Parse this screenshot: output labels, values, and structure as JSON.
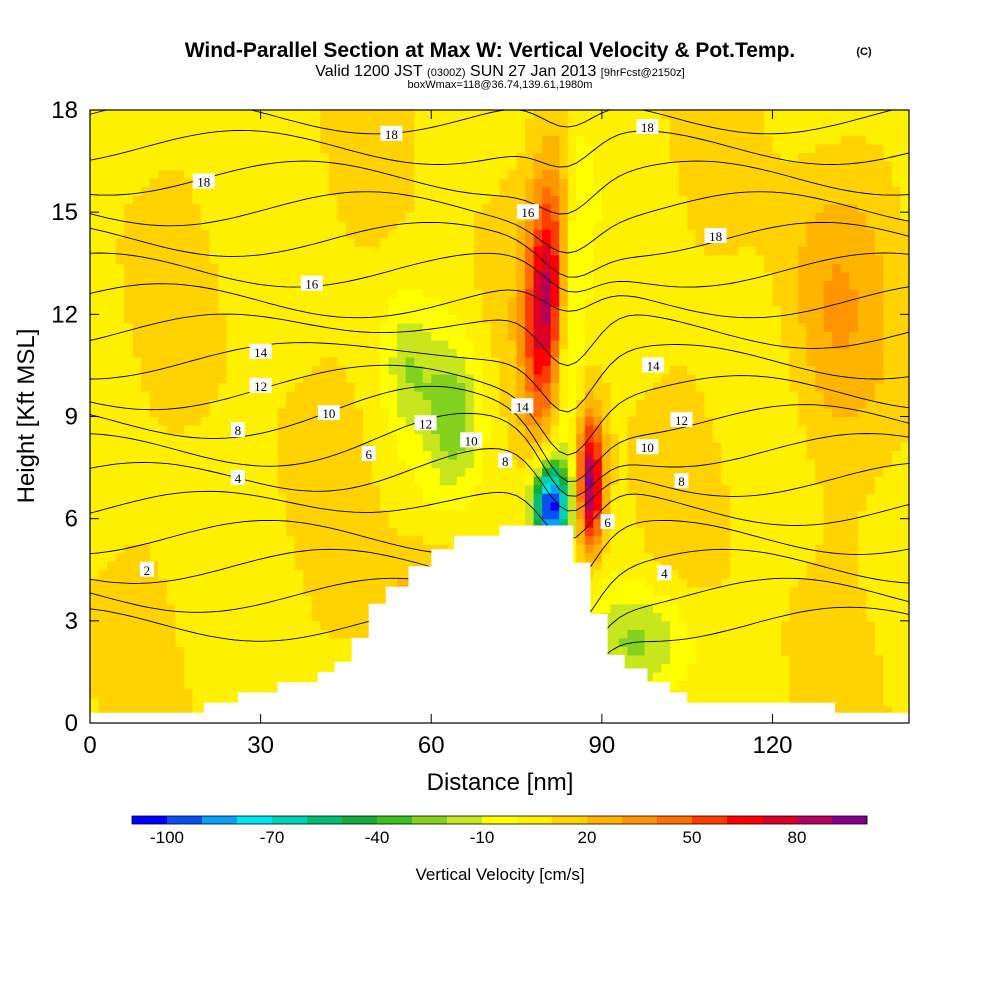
{
  "header": {
    "title": "Wind-Parallel Section at Max W: Vertical Velocity & Pot.Temp.",
    "title_mark": "(C)",
    "line2_a": "Valid 1200 JST",
    "line2_b": "(0300Z)",
    "line2_c": "SUN 27 Jan 2013",
    "line2_d": "[9hrFcst@2150z]",
    "line3": "boxWmax=118@36.74,139.61,1980m"
  },
  "chart_data": {
    "type": "heatmap",
    "xlabel": "Distance [nm]",
    "ylabel": "Height [Kft MSL]",
    "xlim": [
      0,
      144
    ],
    "ylim": [
      0,
      18
    ],
    "x_ticks": [
      0,
      30,
      60,
      90,
      120
    ],
    "y_ticks": [
      0,
      3,
      6,
      9,
      12,
      15,
      18
    ],
    "colorbar": {
      "label": "Vertical Velocity [cm/s]",
      "tick_labels": [
        "-100",
        "-70",
        "-40",
        "-10",
        "20",
        "50",
        "80"
      ],
      "tick_values": [
        -100,
        -70,
        -40,
        -10,
        20,
        50,
        80
      ],
      "range": [
        -110,
        100
      ],
      "step": 10,
      "colors": [
        "#0000ff",
        "#0a50f0",
        "#0aa0f5",
        "#00e6f0",
        "#00d2b4",
        "#00be78",
        "#14aa3c",
        "#3cbe1e",
        "#82d21e",
        "#c8e61e",
        "#ffff00",
        "#fff000",
        "#ffd200",
        "#ffb400",
        "#ff9600",
        "#ff6e00",
        "#ff3c00",
        "#ff0000",
        "#dc0028",
        "#b4005a",
        "#82008c"
      ]
    },
    "terrain": [
      [
        0,
        0.3
      ],
      [
        20,
        0.3
      ],
      [
        20,
        0.6
      ],
      [
        26,
        0.6
      ],
      [
        26,
        0.9
      ],
      [
        33,
        0.9
      ],
      [
        33,
        1.2
      ],
      [
        40,
        1.2
      ],
      [
        40,
        1.5
      ],
      [
        43,
        1.5
      ],
      [
        43,
        1.8
      ],
      [
        46,
        1.8
      ],
      [
        46,
        2.5
      ],
      [
        49,
        2.5
      ],
      [
        49,
        3.5
      ],
      [
        52,
        3.5
      ],
      [
        52,
        4.0
      ],
      [
        56,
        4.0
      ],
      [
        56,
        4.6
      ],
      [
        60,
        4.6
      ],
      [
        60,
        5.1
      ],
      [
        64,
        5.1
      ],
      [
        64,
        5.5
      ],
      [
        72,
        5.5
      ],
      [
        72,
        5.8
      ],
      [
        85,
        5.8
      ],
      [
        85,
        4.7
      ],
      [
        88,
        4.7
      ],
      [
        88,
        3.2
      ],
      [
        91,
        3.2
      ],
      [
        91,
        2.0
      ],
      [
        94,
        2.0
      ],
      [
        94,
        1.6
      ],
      [
        98,
        1.6
      ],
      [
        98,
        1.2
      ],
      [
        102,
        1.2
      ],
      [
        102,
        0.9
      ],
      [
        105,
        0.9
      ],
      [
        105,
        0.6
      ],
      [
        131,
        0.6
      ],
      [
        131,
        0.3
      ],
      [
        144,
        0.3
      ]
    ],
    "theta_levels": [
      2,
      4,
      6,
      8,
      10,
      12,
      14,
      16,
      18
    ],
    "contour_labels": [
      {
        "text": "2",
        "x": 10,
        "y": 4.5
      },
      {
        "text": "4",
        "x": 26,
        "y": 7.2
      },
      {
        "text": "6",
        "x": 49,
        "y": 7.9
      },
      {
        "text": "8",
        "x": 26,
        "y": 8.6
      },
      {
        "text": "10",
        "x": 42,
        "y": 9.1
      },
      {
        "text": "12",
        "x": 30,
        "y": 9.9
      },
      {
        "text": "14",
        "x": 30,
        "y": 10.9
      },
      {
        "text": "16",
        "x": 39,
        "y": 12.9
      },
      {
        "text": "18",
        "x": 20,
        "y": 15.9
      },
      {
        "text": "18",
        "x": 53,
        "y": 17.3
      },
      {
        "text": "16",
        "x": 77,
        "y": 15.0
      },
      {
        "text": "14",
        "x": 76,
        "y": 9.3
      },
      {
        "text": "12",
        "x": 59,
        "y": 8.8
      },
      {
        "text": "10",
        "x": 67,
        "y": 8.3
      },
      {
        "text": "8",
        "x": 73,
        "y": 7.7
      },
      {
        "text": "6",
        "x": 91,
        "y": 5.9
      },
      {
        "text": "4",
        "x": 101,
        "y": 4.4
      },
      {
        "text": "8",
        "x": 104,
        "y": 7.1
      },
      {
        "text": "10",
        "x": 98,
        "y": 8.1
      },
      {
        "text": "12",
        "x": 104,
        "y": 8.9
      },
      {
        "text": "14",
        "x": 99,
        "y": 10.5
      },
      {
        "text": "18",
        "x": 110,
        "y": 14.3
      },
      {
        "text": "18",
        "x": 98,
        "y": 17.5
      }
    ],
    "grid": false,
    "legend": "none"
  }
}
